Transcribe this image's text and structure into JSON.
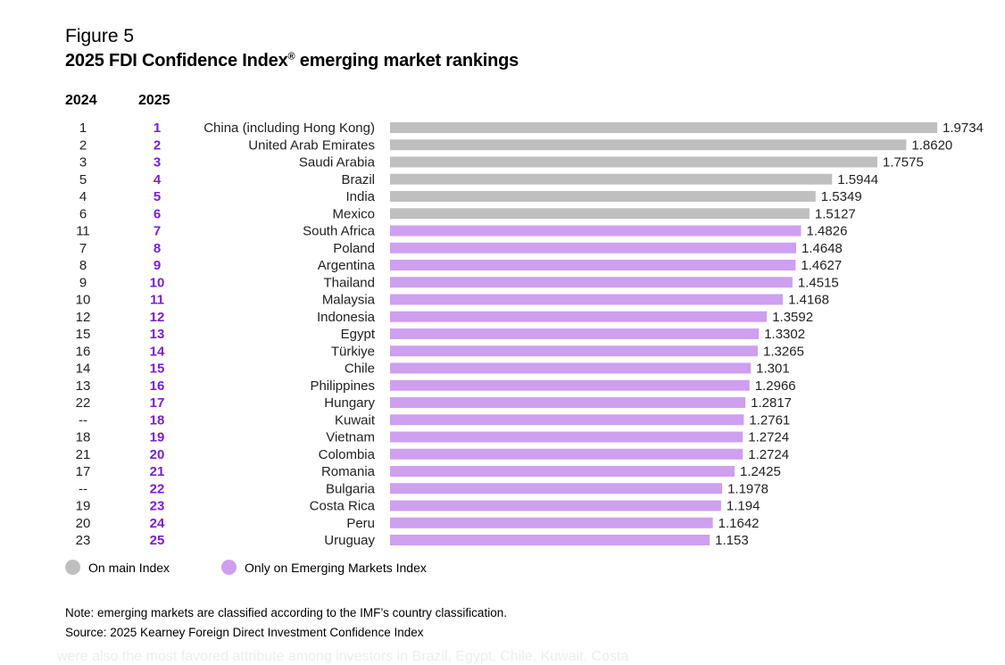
{
  "figure_label": "Figure 5",
  "title": "2025 FDI Confidence Index",
  "title_mark": "®",
  "title_suffix": " emerging market rankings",
  "col_2024": "2024",
  "col_2025": "2025",
  "colors": {
    "main": "#bfbfbf",
    "emerging": "#cf9ff0",
    "rank": "#7a1fd1"
  },
  "legend": [
    {
      "label": "On main Index",
      "color": "#bfbfbf"
    },
    {
      "label": "Only on Emerging Markets Index",
      "color": "#cf9ff0"
    }
  ],
  "note": "Note: emerging markets are classified according to the IMF’s country classification.",
  "source": "Source: 2025 Kearney Foreign Direct Investment Confidence Index",
  "background_text": "were also the most favored attribute among investors in Brazil, Egypt, Chile, Kuwait, Costa",
  "chart_data": {
    "type": "bar",
    "orientation": "horizontal",
    "xlim": [
      0,
      1.9734
    ],
    "grid": false,
    "legend_position": "bottom-left",
    "rows": [
      {
        "rank_2024": "1",
        "rank_2025": "1",
        "country": "China (including Hong Kong)",
        "value": 1.9734,
        "label": "1.9734",
        "group": "main"
      },
      {
        "rank_2024": "2",
        "rank_2025": "2",
        "country": "United Arab Emirates",
        "value": 1.862,
        "label": "1.8620",
        "group": "main"
      },
      {
        "rank_2024": "3",
        "rank_2025": "3",
        "country": "Saudi Arabia",
        "value": 1.7575,
        "label": "1.7575",
        "group": "main"
      },
      {
        "rank_2024": "5",
        "rank_2025": "4",
        "country": "Brazil",
        "value": 1.5944,
        "label": "1.5944",
        "group": "main"
      },
      {
        "rank_2024": "4",
        "rank_2025": "5",
        "country": "India",
        "value": 1.5349,
        "label": "1.5349",
        "group": "main"
      },
      {
        "rank_2024": "6",
        "rank_2025": "6",
        "country": "Mexico",
        "value": 1.5127,
        "label": "1.5127",
        "group": "main"
      },
      {
        "rank_2024": "11",
        "rank_2025": "7",
        "country": "South Africa",
        "value": 1.4826,
        "label": "1.4826",
        "group": "emerging"
      },
      {
        "rank_2024": "7",
        "rank_2025": "8",
        "country": "Poland",
        "value": 1.4648,
        "label": "1.4648",
        "group": "emerging"
      },
      {
        "rank_2024": "8",
        "rank_2025": "9",
        "country": "Argentina",
        "value": 1.4627,
        "label": "1.4627",
        "group": "emerging"
      },
      {
        "rank_2024": "9",
        "rank_2025": "10",
        "country": "Thailand",
        "value": 1.4515,
        "label": "1.4515",
        "group": "emerging"
      },
      {
        "rank_2024": "10",
        "rank_2025": "11",
        "country": "Malaysia",
        "value": 1.4168,
        "label": "1.4168",
        "group": "emerging"
      },
      {
        "rank_2024": "12",
        "rank_2025": "12",
        "country": "Indonesia",
        "value": 1.3592,
        "label": "1.3592",
        "group": "emerging"
      },
      {
        "rank_2024": "15",
        "rank_2025": "13",
        "country": "Egypt",
        "value": 1.3302,
        "label": "1.3302",
        "group": "emerging"
      },
      {
        "rank_2024": "16",
        "rank_2025": "14",
        "country": "Türkiye",
        "value": 1.3265,
        "label": "1.3265",
        "group": "emerging"
      },
      {
        "rank_2024": "14",
        "rank_2025": "15",
        "country": "Chile",
        "value": 1.301,
        "label": "1.301",
        "group": "emerging"
      },
      {
        "rank_2024": "13",
        "rank_2025": "16",
        "country": "Philippines",
        "value": 1.2966,
        "label": "1.2966",
        "group": "emerging"
      },
      {
        "rank_2024": "22",
        "rank_2025": "17",
        "country": "Hungary",
        "value": 1.2817,
        "label": "1.2817",
        "group": "emerging"
      },
      {
        "rank_2024": "--",
        "rank_2025": "18",
        "country": "Kuwait",
        "value": 1.2761,
        "label": "1.2761",
        "group": "emerging"
      },
      {
        "rank_2024": "18",
        "rank_2025": "19",
        "country": "Vietnam",
        "value": 1.2724,
        "label": "1.2724",
        "group": "emerging"
      },
      {
        "rank_2024": "21",
        "rank_2025": "20",
        "country": "Colombia",
        "value": 1.2724,
        "label": "1.2724",
        "group": "emerging"
      },
      {
        "rank_2024": "17",
        "rank_2025": "21",
        "country": "Romania",
        "value": 1.2425,
        "label": "1.2425",
        "group": "emerging"
      },
      {
        "rank_2024": "--",
        "rank_2025": "22",
        "country": "Bulgaria",
        "value": 1.1978,
        "label": "1.1978",
        "group": "emerging"
      },
      {
        "rank_2024": "19",
        "rank_2025": "23",
        "country": "Costa Rica",
        "value": 1.194,
        "label": "1.194",
        "group": "emerging"
      },
      {
        "rank_2024": "20",
        "rank_2025": "24",
        "country": "Peru",
        "value": 1.1642,
        "label": "1.1642",
        "group": "emerging"
      },
      {
        "rank_2024": "23",
        "rank_2025": "25",
        "country": "Uruguay",
        "value": 1.153,
        "label": "1.153",
        "group": "emerging"
      }
    ]
  }
}
